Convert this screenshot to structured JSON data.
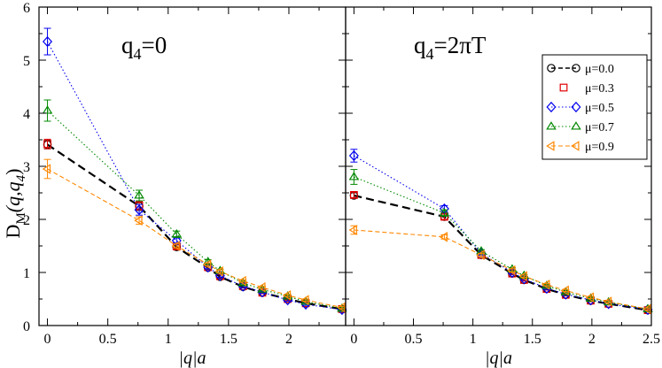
{
  "chart_data": {
    "type": "line",
    "ylabel": "D_M(q,q_4)",
    "ylabel_main": "D",
    "ylabel_sub": "M",
    "ylabel_rest": "(q,q",
    "ylabel_sub2": "4",
    "ylabel_end": ")",
    "ylim": [
      0,
      6
    ],
    "yticks": [
      0,
      1,
      2,
      3,
      4,
      5,
      6
    ],
    "ytick_labels": [
      "0",
      "1",
      "2",
      "3",
      "4",
      "5",
      "6"
    ],
    "legend": {
      "placement": "top-right of right panel",
      "entries": [
        {
          "label": "μ=0.0",
          "color": "#000000",
          "marker": "circle",
          "dash": "long"
        },
        {
          "label": "μ=0.3",
          "color": "#e00000",
          "marker": "square",
          "dash": "none"
        },
        {
          "label": "μ=0.5",
          "color": "#0000ee",
          "marker": "diamond",
          "dash": "dot"
        },
        {
          "label": "μ=0.7",
          "color": "#008800",
          "marker": "triangle-up",
          "dash": "dot"
        },
        {
          "label": "μ=0.9",
          "color": "#ff8800",
          "marker": "triangle-left",
          "dash": "dash"
        }
      ]
    },
    "panels": [
      {
        "title_main": "q",
        "title_sub": "4",
        "title_rest": "=0",
        "xlabel": "|q|a",
        "xlim": [
          -0.07,
          2.47
        ],
        "xticks": [
          0,
          0.5,
          1,
          1.5,
          2
        ],
        "xtick_labels": [
          "0",
          "0.5",
          "1",
          "1.5",
          "2"
        ],
        "series": [
          {
            "name": "μ=0.0",
            "x": [
              0,
              0.76,
              1.07,
              1.33,
              1.43,
              1.62,
              1.78,
              1.99,
              2.14,
              2.44
            ],
            "y": [
              3.41,
              2.25,
              1.48,
              1.09,
              0.92,
              0.73,
              0.62,
              0.5,
              0.42,
              0.31
            ],
            "err": [
              0.08,
              0.08,
              0.04,
              0.03,
              0.03,
              0.02,
              0.02,
              0.02,
              0.02,
              0.02
            ]
          },
          {
            "name": "μ=0.3",
            "x": [
              0,
              0.76,
              1.07,
              1.33,
              1.43,
              1.62,
              1.78,
              1.99,
              2.14,
              2.44
            ],
            "y": [
              3.42,
              2.26,
              1.49,
              1.1,
              0.93,
              0.74,
              0.62,
              0.5,
              0.42,
              0.31
            ],
            "err": [
              0.09,
              0.08,
              0.04,
              0.03,
              0.03,
              0.02,
              0.02,
              0.02,
              0.02,
              0.02
            ]
          },
          {
            "name": "μ=0.5",
            "x": [
              0,
              0.76,
              1.07,
              1.33,
              1.43,
              1.62,
              1.78,
              1.99,
              2.14,
              2.44
            ],
            "y": [
              5.35,
              2.18,
              1.6,
              1.1,
              0.94,
              0.74,
              0.63,
              0.48,
              0.4,
              0.3
            ],
            "err": [
              0.25,
              0.1,
              0.05,
              0.03,
              0.03,
              0.02,
              0.02,
              0.02,
              0.02,
              0.02
            ]
          },
          {
            "name": "μ=0.7",
            "x": [
              0,
              0.76,
              1.07,
              1.33,
              1.43,
              1.62,
              1.78,
              1.99,
              2.14,
              2.44
            ],
            "y": [
              4.05,
              2.45,
              1.72,
              1.2,
              1.03,
              0.8,
              0.68,
              0.55,
              0.45,
              0.32
            ],
            "err": [
              0.2,
              0.1,
              0.06,
              0.04,
              0.03,
              0.03,
              0.02,
              0.02,
              0.02,
              0.02
            ]
          },
          {
            "name": "μ=0.9",
            "x": [
              0,
              0.76,
              1.07,
              1.33,
              1.43,
              1.62,
              1.78,
              1.99,
              2.14,
              2.44
            ],
            "y": [
              2.95,
              1.98,
              1.5,
              1.15,
              1.02,
              0.84,
              0.72,
              0.57,
              0.48,
              0.34
            ],
            "err": [
              0.18,
              0.07,
              0.04,
              0.03,
              0.03,
              0.02,
              0.02,
              0.02,
              0.02,
              0.02
            ]
          }
        ]
      },
      {
        "title_main": "q",
        "title_sub": "4",
        "title_rest": "=2πT",
        "xlabel": "|q|a",
        "xlim": [
          -0.07,
          2.5
        ],
        "xticks": [
          0,
          0.5,
          1,
          1.5,
          2,
          2.5
        ],
        "xtick_labels": [
          "0",
          "0.5",
          "1",
          "1.5",
          "2",
          "2.5"
        ],
        "series": [
          {
            "name": "μ=0.0",
            "x": [
              0,
              0.76,
              1.07,
              1.33,
              1.43,
              1.62,
              1.78,
              1.99,
              2.14,
              2.47
            ],
            "y": [
              2.45,
              2.05,
              1.33,
              0.98,
              0.86,
              0.69,
              0.58,
              0.47,
              0.41,
              0.29
            ],
            "err": [
              0.05,
              0.05,
              0.03,
              0.02,
              0.02,
              0.02,
              0.02,
              0.02,
              0.02,
              0.02
            ]
          },
          {
            "name": "μ=0.3",
            "x": [
              0,
              0.76,
              1.07,
              1.33,
              1.43,
              1.62,
              1.78,
              1.99,
              2.14,
              2.47
            ],
            "y": [
              2.46,
              2.05,
              1.33,
              0.98,
              0.86,
              0.69,
              0.58,
              0.47,
              0.41,
              0.29
            ],
            "err": [
              0.05,
              0.05,
              0.03,
              0.02,
              0.02,
              0.02,
              0.02,
              0.02,
              0.02,
              0.02
            ]
          },
          {
            "name": "μ=0.5",
            "x": [
              0,
              0.76,
              1.07,
              1.33,
              1.43,
              1.62,
              1.78,
              1.99,
              2.14,
              2.47
            ],
            "y": [
              3.2,
              2.2,
              1.36,
              1.0,
              0.88,
              0.7,
              0.59,
              0.48,
              0.41,
              0.3
            ],
            "err": [
              0.12,
              0.06,
              0.03,
              0.03,
              0.02,
              0.02,
              0.02,
              0.02,
              0.02,
              0.02
            ]
          },
          {
            "name": "μ=0.7",
            "x": [
              0,
              0.76,
              1.07,
              1.33,
              1.43,
              1.62,
              1.78,
              1.99,
              2.14,
              2.47
            ],
            "y": [
              2.8,
              2.12,
              1.4,
              1.06,
              0.94,
              0.75,
              0.63,
              0.51,
              0.44,
              0.31
            ],
            "err": [
              0.14,
              0.06,
              0.03,
              0.03,
              0.02,
              0.02,
              0.02,
              0.02,
              0.02,
              0.02
            ]
          },
          {
            "name": "μ=0.9",
            "x": [
              0,
              0.76,
              1.07,
              1.33,
              1.43,
              1.62,
              1.78,
              1.99,
              2.14,
              2.47
            ],
            "y": [
              1.8,
              1.67,
              1.33,
              1.04,
              0.93,
              0.77,
              0.66,
              0.53,
              0.45,
              0.31
            ],
            "err": [
              0.08,
              0.04,
              0.03,
              0.03,
              0.02,
              0.02,
              0.02,
              0.02,
              0.02,
              0.02
            ]
          }
        ]
      }
    ]
  }
}
